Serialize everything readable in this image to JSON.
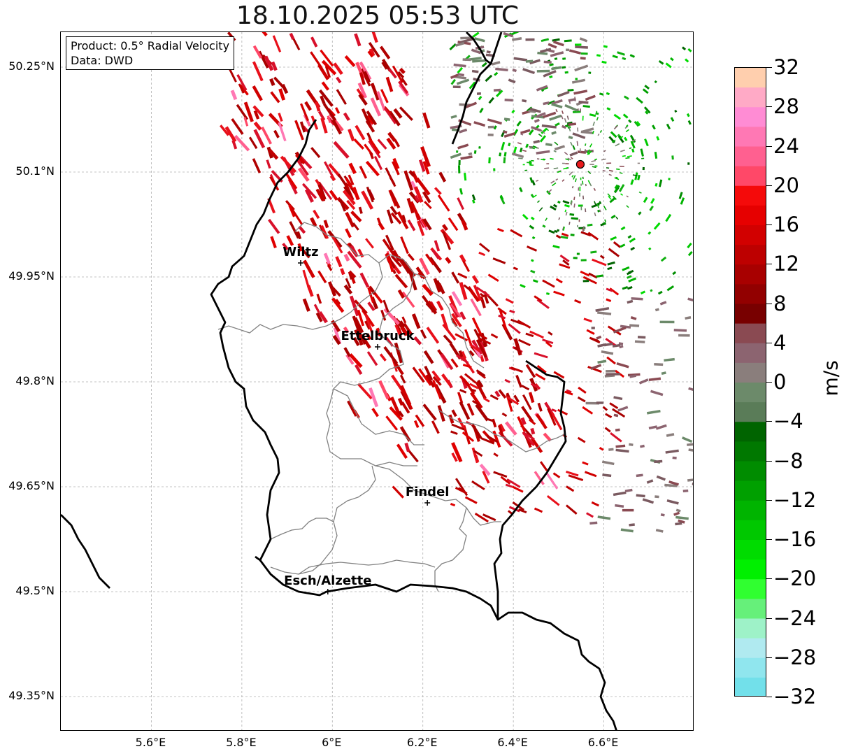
{
  "title": "18.10.2025 05:53 UTC",
  "info": {
    "product": "Product: 0.5° Radial Velocity",
    "data": "Data: DWD"
  },
  "lat_labels": [
    {
      "label": "50.25°N",
      "value": 50.25
    },
    {
      "label": "50.1°N",
      "value": 50.1
    },
    {
      "label": "49.95°N",
      "value": 49.95
    },
    {
      "label": "49.8°N",
      "value": 49.8
    },
    {
      "label": "49.65°N",
      "value": 49.65
    },
    {
      "label": "49.5°N",
      "value": 49.5
    },
    {
      "label": "49.35°N",
      "value": 49.35
    }
  ],
  "lon_labels": [
    {
      "label": "5.6°E",
      "value": 5.6
    },
    {
      "label": "5.8°E",
      "value": 5.8
    },
    {
      "label": "6°E",
      "value": 6.0
    },
    {
      "label": "6.2°E",
      "value": 6.2
    },
    {
      "label": "6.4°E",
      "value": 6.4
    },
    {
      "label": "6.6°E",
      "value": 6.6
    }
  ],
  "extent": {
    "lon_min": 5.4,
    "lon_max": 6.8,
    "lat_min": 49.3,
    "lat_max": 50.3
  },
  "cities": [
    {
      "name": "Wiltz",
      "lon": 5.93,
      "lat": 49.97
    },
    {
      "name": "Ettelbruck",
      "lon": 6.1,
      "lat": 49.85
    },
    {
      "name": "Findel",
      "lon": 6.21,
      "lat": 49.627
    },
    {
      "name": "Esch/Alzette",
      "lon": 5.99,
      "lat": 49.5
    }
  ],
  "radar_site": {
    "lon": 6.548,
    "lat": 50.111,
    "color": "#e8191c"
  },
  "colorbar": {
    "unit": "m/s",
    "min": -32,
    "max": 32,
    "tick_values": [
      32,
      28,
      24,
      20,
      16,
      12,
      8,
      4,
      0,
      -4,
      -8,
      -12,
      -16,
      -20,
      -24,
      -28,
      -32
    ],
    "tick_labels": [
      "32",
      "28",
      "24",
      "20",
      "16",
      "12",
      "8",
      "4",
      "0",
      "−4",
      "−8",
      "−12",
      "−16",
      "−20",
      "−24",
      "−28",
      "−32"
    ],
    "bands_top_to_bottom": [
      "#ffcfae",
      "#ffaac6",
      "#ff8cd4",
      "#ff78b4",
      "#ff6090",
      "#ff4868",
      "#f50a0a",
      "#e60000",
      "#d20000",
      "#bd0000",
      "#a80000",
      "#920000",
      "#780000",
      "#8a4a52",
      "#8c6470",
      "#8a7e7c",
      "#6c8a6a",
      "#5a7c58",
      "#006400",
      "#007800",
      "#008c00",
      "#00a000",
      "#00b400",
      "#00c800",
      "#00dc00",
      "#00f000",
      "#30ff30",
      "#66f07a",
      "#9ef2c8",
      "#b0eaf0",
      "#90e6ee",
      "#72e0ea"
    ]
  },
  "colors": {
    "country_border": "#000000",
    "canton_border": "#808080",
    "grid": "#b0b0b0"
  }
}
